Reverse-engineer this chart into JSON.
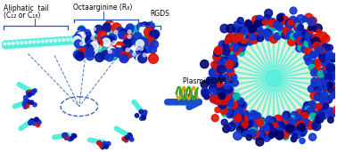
{
  "background_color": "#ffffff",
  "label_aliphatic": "Aliphatic  tail",
  "label_aliphatic2": "(C₁₂ or C₁₈)",
  "label_octaarg": "Octaarginine (R₈)",
  "label_rgds": "RGDS",
  "label_plasmid": "Plasmid DNA",
  "arrow_color": "#1a4fcc",
  "brace_color": "#2255bb",
  "tail_color": "#55eedd",
  "blue_bead_color": "#1133cc",
  "dark_blue_color": "#001199",
  "navy_color": "#000066",
  "red_bead_color": "#dd1100",
  "teal_bead_color": "#00bbaa",
  "white_bead_color": "#e8f8f5",
  "figsize": [
    3.78,
    1.71
  ],
  "dpi": 100
}
